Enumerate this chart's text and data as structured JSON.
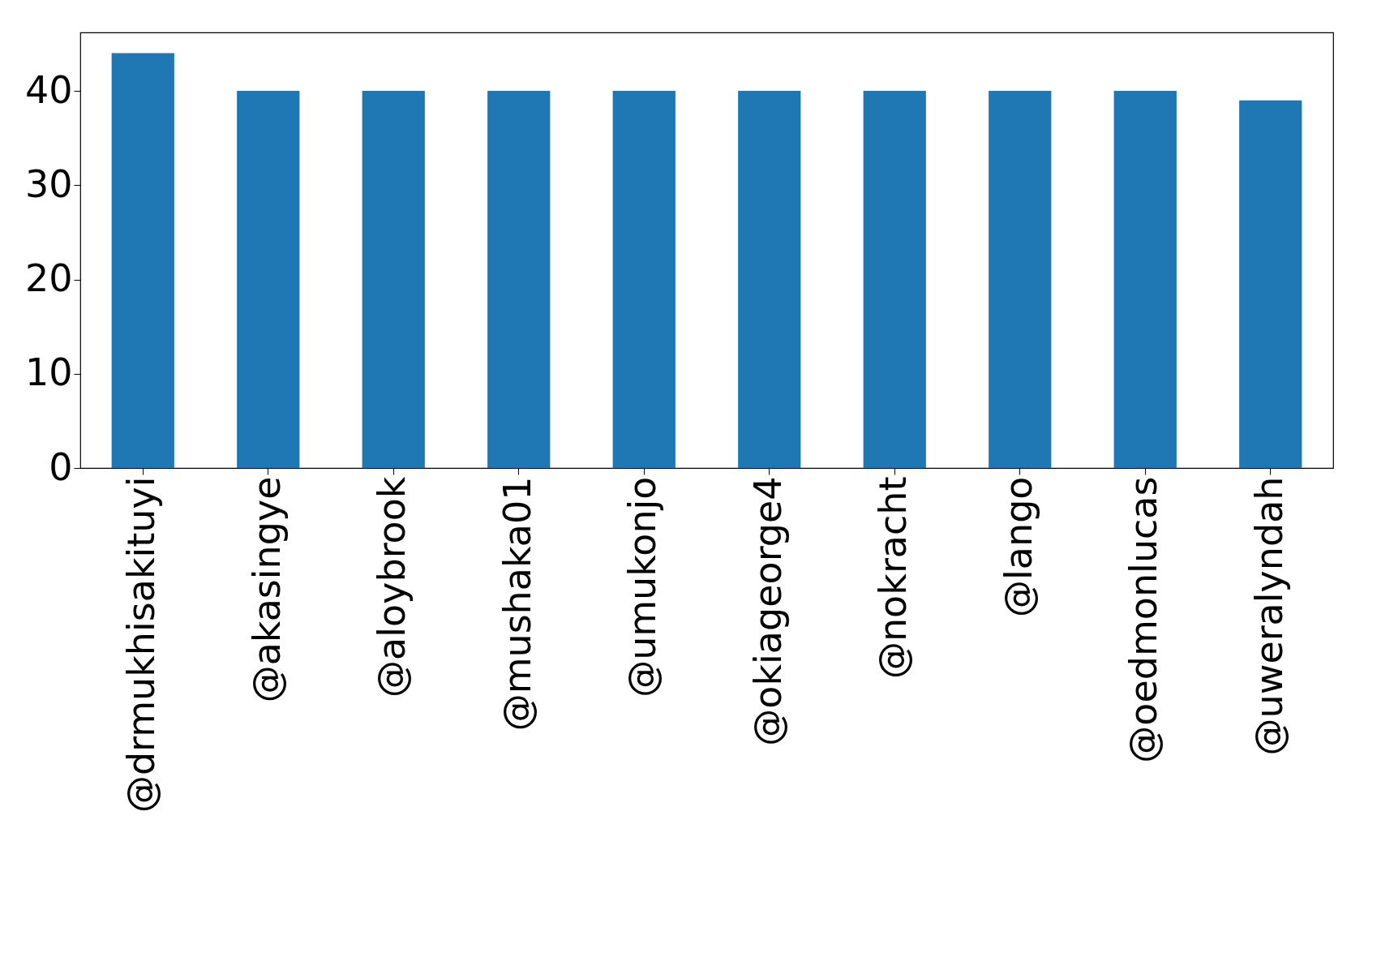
{
  "chart_data": {
    "type": "bar",
    "categories": [
      "@drmukhisakituyi",
      "@akasingye",
      "@aloybrook",
      "@mushaka01",
      "@umukonjo",
      "@okiageorge4",
      "@nokracht",
      "@lango",
      "@oedmonlucas",
      "@uweralyndah"
    ],
    "values": [
      44,
      40,
      40,
      40,
      40,
      40,
      40,
      40,
      40,
      39
    ],
    "color": "#1f77b4",
    "ylim": [
      0,
      46.2
    ],
    "yticks": [
      0,
      10,
      20,
      30,
      40
    ],
    "grid": false
  }
}
